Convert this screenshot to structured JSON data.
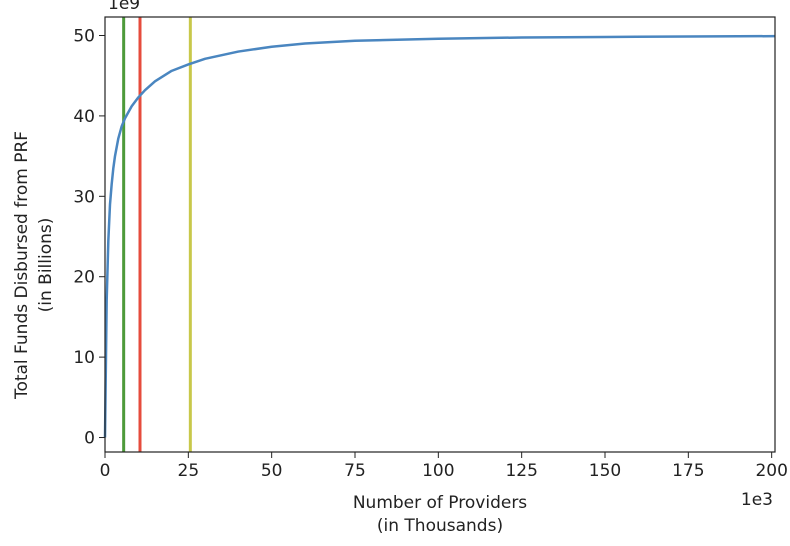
{
  "chart_data": {
    "type": "line",
    "title": "",
    "xlabel": [
      "Number of Providers",
      "(in Thousands)"
    ],
    "ylabel": [
      "Total Funds Disbursed from PRF",
      "(in Billions)"
    ],
    "x_offset_text": "1e3",
    "y_offset_text": "1e9",
    "xlim": [
      0,
      201
    ],
    "ylim": [
      -1.8,
      52.3
    ],
    "x_ticks": [
      0,
      25,
      50,
      75,
      100,
      125,
      150,
      175,
      200
    ],
    "x_tick_labels": [
      "0",
      "25",
      "50",
      "75",
      "100",
      "125",
      "150",
      "175",
      "200"
    ],
    "y_ticks": [
      0,
      10,
      20,
      30,
      40,
      50
    ],
    "y_tick_labels": [
      "0",
      "10",
      "20",
      "30",
      "40",
      "50"
    ],
    "grid": false,
    "series": [
      {
        "color": "#4a86c0",
        "x": [
          0,
          0.5,
          1,
          1.5,
          2,
          2.5,
          3,
          4,
          5,
          6,
          8,
          10,
          12,
          15,
          20,
          25,
          30,
          40,
          50,
          60,
          75,
          100,
          125,
          150,
          175,
          201
        ],
        "y": [
          0,
          17,
          24.5,
          29,
          31.5,
          33.5,
          35,
          37.2,
          38.7,
          39.7,
          41.2,
          42.3,
          43.2,
          44.3,
          45.6,
          46.4,
          47.1,
          48.0,
          48.6,
          49.0,
          49.35,
          49.6,
          49.75,
          49.82,
          49.88,
          49.92
        ]
      }
    ],
    "vertical_lines": [
      {
        "x": 5.6,
        "color": "#4d9a3a"
      },
      {
        "x": 10.5,
        "color": "#e64c3c"
      },
      {
        "x": 25.6,
        "color": "#c8c84a"
      }
    ]
  }
}
